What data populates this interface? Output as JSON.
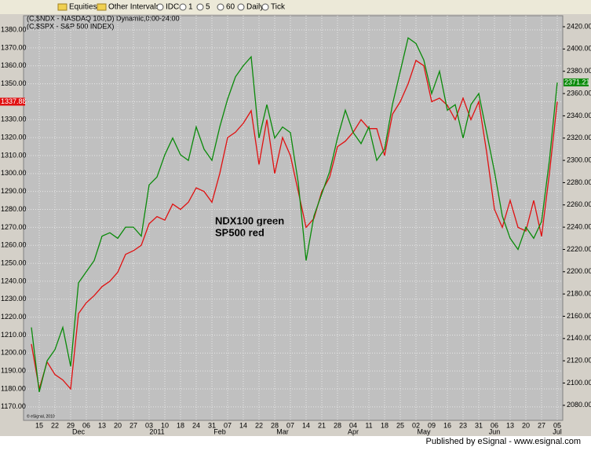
{
  "toolbar": {
    "items": [
      "Equities",
      "Other Intervals",
      "IDC",
      "1",
      "5",
      "60",
      "Daily",
      "Tick"
    ]
  },
  "footer": "Published by eSignal - www.esignal.com",
  "chart_data": {
    "type": "line",
    "legend_lines": [
      "(C,$NDX - NASDAQ 100,D) Dynamic,0:00-24:00",
      "(C,$SPX - S&P 500 INDEX)"
    ],
    "annotation": [
      "NDX100 green",
      "SP500 red"
    ],
    "copyright": "© eSignal, 2010",
    "categories": [
      null,
      "15",
      null,
      "22",
      null,
      "29",
      null,
      "06",
      null,
      "13",
      null,
      "20",
      null,
      "27",
      null,
      "03",
      null,
      "10",
      null,
      "18",
      null,
      "24",
      null,
      "31",
      null,
      "07",
      null,
      "14",
      null,
      "22",
      null,
      "28",
      null,
      "07",
      null,
      "14",
      null,
      "21",
      null,
      "28",
      null,
      "04",
      null,
      "11",
      null,
      "18",
      null,
      "25",
      null,
      "02",
      null,
      "09",
      null,
      "16",
      null,
      "23",
      null,
      "31",
      null,
      "06",
      null,
      "13",
      null,
      "20",
      null,
      "27",
      null,
      "05"
    ],
    "months": [
      null,
      null,
      null,
      null,
      null,
      null,
      "Dec",
      null,
      null,
      null,
      null,
      null,
      null,
      null,
      null,
      null,
      "2011",
      null,
      null,
      null,
      null,
      null,
      null,
      null,
      "Feb",
      null,
      null,
      null,
      null,
      null,
      null,
      null,
      "Mar",
      null,
      null,
      null,
      null,
      null,
      null,
      null,
      null,
      "Apr",
      null,
      null,
      null,
      null,
      null,
      null,
      null,
      null,
      "May",
      null,
      null,
      null,
      null,
      null,
      null,
      null,
      null,
      "Jun",
      null,
      null,
      null,
      null,
      null,
      null,
      null,
      "Jul"
    ],
    "series": [
      {
        "name": "SP500",
        "color": "#e01010",
        "last_label": "1337.88",
        "values": [
          1205,
          1180,
          1195,
          1188,
          1185,
          1180,
          1222,
          1228,
          1232,
          1237,
          1240,
          1245,
          1255,
          1257,
          1260,
          1272,
          1276,
          1274,
          1283,
          1280,
          1284,
          1292,
          1290,
          1284,
          1300,
          1320,
          1323,
          1328,
          1335,
          1305,
          1330,
          1300,
          1320,
          1310,
          1290,
          1270,
          1275,
          1290,
          1298,
          1315,
          1318,
          1323,
          1330,
          1325,
          1325,
          1310,
          1333,
          1340,
          1350,
          1363,
          1360,
          1340,
          1342,
          1338,
          1330,
          1342,
          1330,
          1340,
          1312,
          1280,
          1270,
          1285,
          1270,
          1268,
          1285,
          1265,
          1300,
          1340
        ]
      },
      {
        "name": "NDX100",
        "color": "#0a8a0a",
        "axis": "y2",
        "last_label": "2371.21",
        "values": [
          2150,
          2092,
          2120,
          2130,
          2150,
          2115,
          2190,
          2200,
          2210,
          2232,
          2235,
          2230,
          2240,
          2240,
          2232,
          2278,
          2285,
          2305,
          2320,
          2305,
          2300,
          2330,
          2310,
          2300,
          2330,
          2355,
          2375,
          2385,
          2393,
          2320,
          2350,
          2320,
          2330,
          2325,
          2280,
          2210,
          2250,
          2270,
          2290,
          2320,
          2345,
          2325,
          2315,
          2330,
          2300,
          2310,
          2350,
          2380,
          2410,
          2405,
          2390,
          2360,
          2380,
          2345,
          2350,
          2320,
          2350,
          2360,
          2325,
          2290,
          2250,
          2230,
          2220,
          2240,
          2230,
          2245,
          2300,
          2370
        ]
      }
    ],
    "ylim": [
      1162.5,
      1387.9
    ],
    "yticks": [
      {
        "value": 1170,
        "label": "1170.00"
      },
      {
        "value": 1180,
        "label": "1180.00"
      },
      {
        "value": 1190,
        "label": "1190.00"
      },
      {
        "value": 1200,
        "label": "1200.00"
      },
      {
        "value": 1210,
        "label": "1210.00"
      },
      {
        "value": 1220,
        "label": "1220.00"
      },
      {
        "value": 1230,
        "label": "1230.00"
      },
      {
        "value": 1240,
        "label": "1240.00"
      },
      {
        "value": 1250,
        "label": "1250.00"
      },
      {
        "value": 1260,
        "label": "1260.00"
      },
      {
        "value": 1270,
        "label": "1270.00"
      },
      {
        "value": 1280,
        "label": "1280.00"
      },
      {
        "value": 1290,
        "label": "1290.00"
      },
      {
        "value": 1300,
        "label": "1300.00"
      },
      {
        "value": 1310,
        "label": "1310.00"
      },
      {
        "value": 1320,
        "label": "1320.00"
      },
      {
        "value": 1330,
        "label": "1330.00"
      },
      {
        "value": 1340,
        "label": "1340.00"
      },
      {
        "value": 1350,
        "label": "1350.00"
      },
      {
        "value": 1360,
        "label": "1360.00"
      },
      {
        "value": 1370,
        "label": "1370.00"
      },
      {
        "value": 1380,
        "label": "1380.00"
      }
    ],
    "y2lim": [
      2066.5,
      2429.9
    ],
    "y2ticks": [
      {
        "value": 2080,
        "label": "2080.00"
      },
      {
        "value": 2100,
        "label": "2100.00"
      },
      {
        "value": 2120,
        "label": "2120.00"
      },
      {
        "value": 2140,
        "label": "2140.00"
      },
      {
        "value": 2160,
        "label": "2160.00"
      },
      {
        "value": 2180,
        "label": "2180.00"
      },
      {
        "value": 2200,
        "label": "2200.00"
      },
      {
        "value": 2220,
        "label": "2220.00"
      },
      {
        "value": 2240,
        "label": "2240.00"
      },
      {
        "value": 2260,
        "label": "2260.00"
      },
      {
        "value": 2280,
        "label": "2280.00"
      },
      {
        "value": 2300,
        "label": "2300.00"
      },
      {
        "value": 2320,
        "label": "2320.00"
      },
      {
        "value": 2340,
        "label": "2340.00"
      },
      {
        "value": 2360,
        "label": "2360.00"
      },
      {
        "value": 2380,
        "label": "2380.00"
      },
      {
        "value": 2400,
        "label": "2400.00"
      },
      {
        "value": 2420,
        "label": "2420.00"
      }
    ],
    "grid": true
  }
}
